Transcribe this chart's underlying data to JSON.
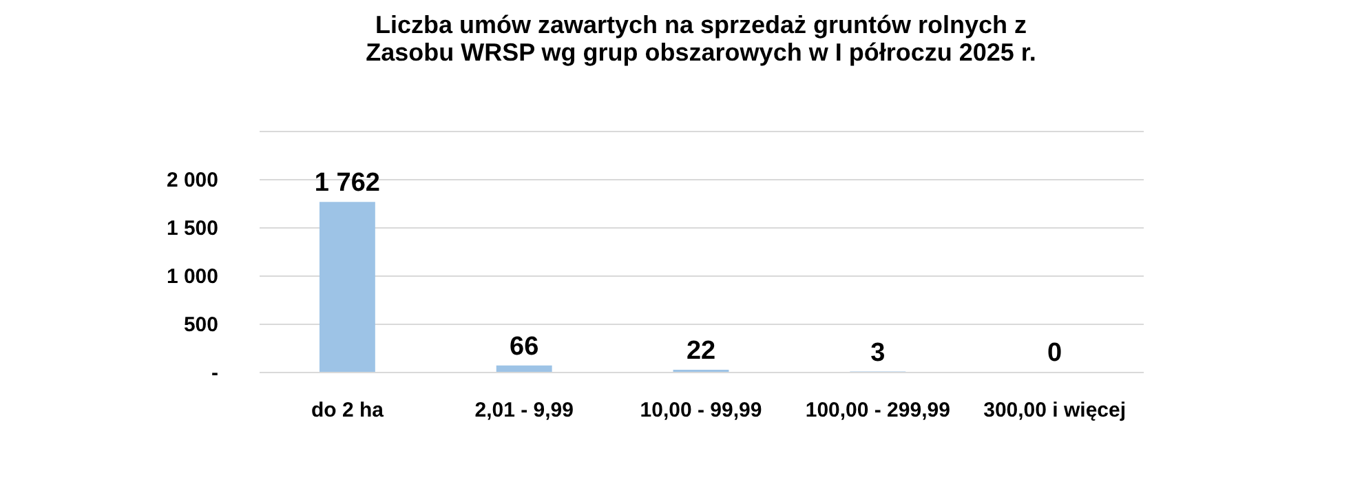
{
  "chart_data": {
    "type": "bar",
    "title": "Liczba umów zawartych na sprzedaż gruntów rolnych z Zasobu WRSP wg grup obszarowych w I półroczu 2025 r.",
    "categories": [
      "do 2 ha",
      "2,01 - 9,99",
      "10,00 - 99,99",
      "100,00 - 299,99",
      "300,00 i więcej"
    ],
    "values": [
      1762,
      66,
      22,
      3,
      0
    ],
    "value_labels": [
      "1 762",
      "66",
      "22",
      "3",
      "0"
    ],
    "color": "#9dc3e6",
    "ylim": [
      0,
      2500
    ],
    "yticks": [
      {
        "value": 0,
        "label": "-"
      },
      {
        "value": 500,
        "label": "500"
      },
      {
        "value": 1000,
        "label": "1 000"
      },
      {
        "value": 1500,
        "label": "1 500"
      },
      {
        "value": 2000,
        "label": "2 000"
      },
      {
        "value": 2500,
        "label": null
      }
    ],
    "grid": "y"
  }
}
